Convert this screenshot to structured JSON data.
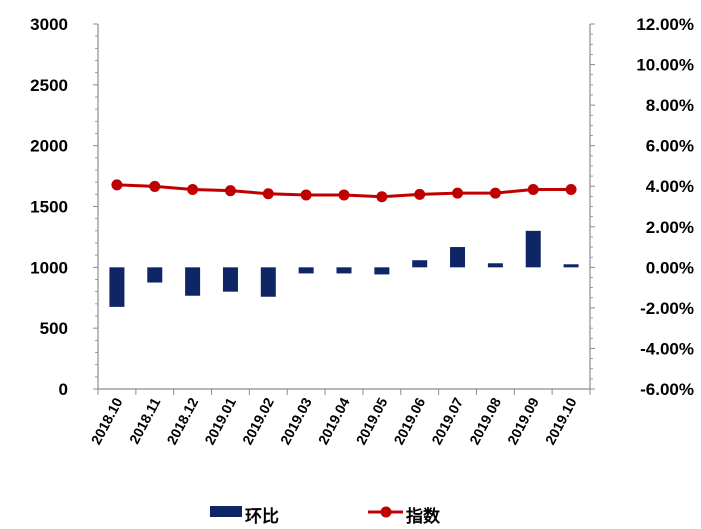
{
  "chart_data": {
    "type": "bar+line",
    "categories": [
      "2018.10",
      "2018.11",
      "2018.12",
      "2019.01",
      "2019.02",
      "2019.03",
      "2019.04",
      "2019.05",
      "2019.06",
      "2019.07",
      "2019.08",
      "2019.09",
      "2019.10"
    ],
    "series": [
      {
        "name": "环比",
        "type": "bar",
        "axis": "right",
        "color": "#0e2566",
        "values": [
          -1.95,
          -0.75,
          -1.4,
          -1.2,
          -1.45,
          -0.3,
          -0.3,
          -0.35,
          0.35,
          1.0,
          0.2,
          1.8,
          0.15
        ]
      },
      {
        "name": "指数",
        "type": "line",
        "axis": "left",
        "color": "#c00000",
        "values": [
          1678,
          1665,
          1640,
          1630,
          1605,
          1595,
          1595,
          1580,
          1600,
          1610,
          1610,
          1640,
          1640
        ]
      }
    ],
    "y_left": {
      "ylim": [
        0,
        3000
      ],
      "ticks": [
        "0",
        "500",
        "1000",
        "1500",
        "2000",
        "2500",
        "3000"
      ],
      "tick_values": [
        0,
        500,
        1000,
        1500,
        2000,
        2500,
        3000
      ]
    },
    "y_right": {
      "ylim": [
        -6,
        12
      ],
      "ticks": [
        "-6.00%",
        "-4.00%",
        "-2.00%",
        "0.00%",
        "2.00%",
        "4.00%",
        "6.00%",
        "8.00%",
        "10.00%",
        "12.00%"
      ],
      "tick_values": [
        -6,
        -4,
        -2,
        0,
        2,
        4,
        6,
        8,
        10,
        12
      ]
    },
    "grid": false,
    "legend_position": "bottom"
  }
}
